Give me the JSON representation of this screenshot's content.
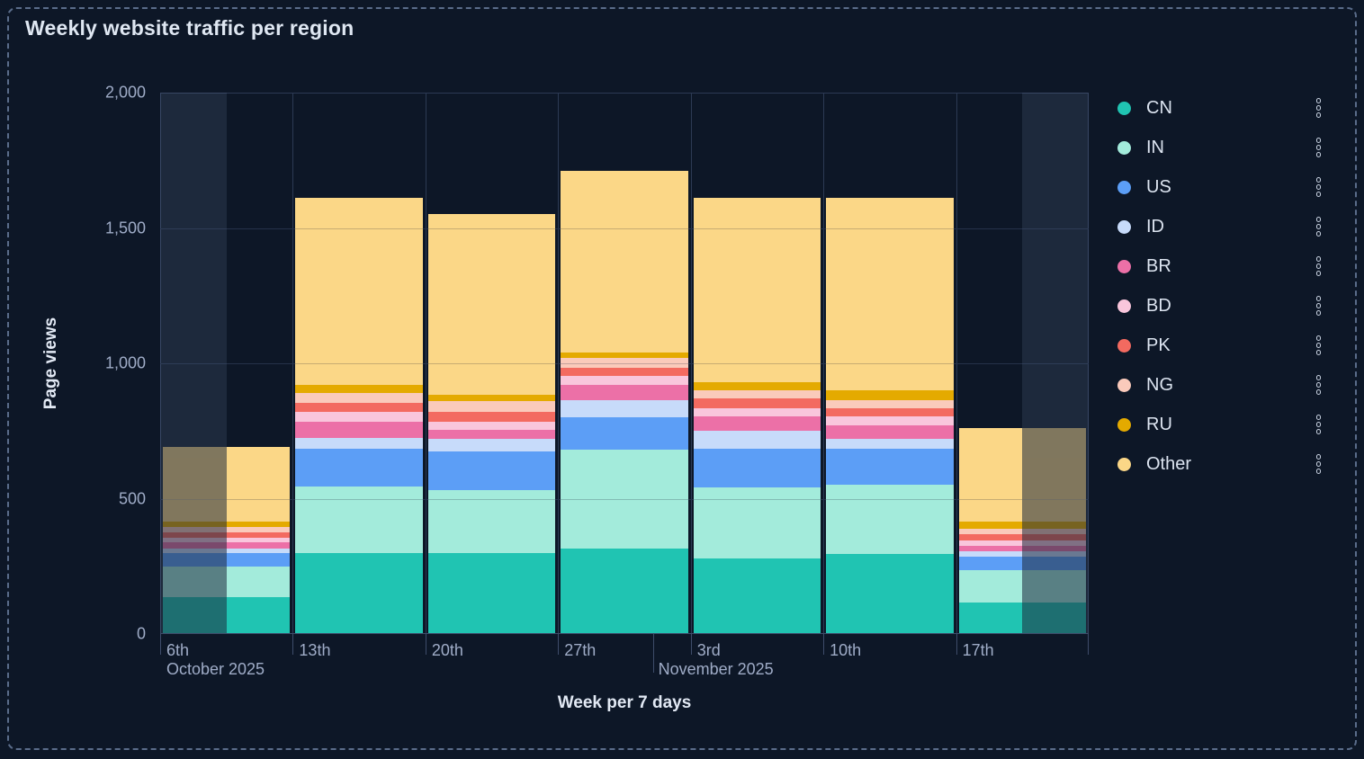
{
  "title": "Weekly website traffic per region",
  "colors": {
    "background": "#0D1727",
    "frame_border": "#5A6C8A",
    "grid_line": "#2C3A54",
    "axis_line": "#3E4C6A",
    "tick_label": "#9FACC7",
    "axis_title": "#E2E9F4",
    "title_text": "#DFE7F2",
    "legend_label": "#DCE4F0",
    "menu_icon": "#C7D1E0",
    "partial_week_overlay": "rgba(141,162,207,0.13)"
  },
  "y_axis": {
    "title": "Page views",
    "ticks": [
      {
        "value": 0,
        "label": "0"
      },
      {
        "value": 500,
        "label": "500"
      },
      {
        "value": 1000,
        "label": "1,000"
      },
      {
        "value": 1500,
        "label": "1,500"
      },
      {
        "value": 2000,
        "label": "2,000"
      }
    ]
  },
  "x_axis": {
    "title": "Week per 7 days",
    "week_labels": [
      "6th",
      "13th",
      "20th",
      "27th",
      "3rd",
      "10th",
      "17th"
    ],
    "month_labels": [
      {
        "text": "October 2025",
        "week_index": 0,
        "day_offset_fraction": 0
      },
      {
        "text": "November 2025",
        "week_index": 3,
        "day_offset_fraction": 0.7143
      }
    ],
    "month_tick": {
      "week_index": 3,
      "day_offset_fraction": 0.7143
    }
  },
  "legend": {
    "position": "right",
    "menu_icon": "kebab-three-circles"
  },
  "chart_data": {
    "type": "bar",
    "stacked": true,
    "title": "Weekly website traffic per region",
    "xlabel": "Week per 7 days",
    "ylabel": "Page views",
    "ylim": [
      0,
      2000
    ],
    "y_tick_values": [
      0,
      500,
      1000,
      1500,
      2000
    ],
    "grid": true,
    "legend_position": "right",
    "categories": [
      "6th (October 2025)",
      "13th",
      "20th",
      "27th",
      "3rd (November 2025)",
      "10th",
      "17th"
    ],
    "series": [
      {
        "name": "CN",
        "color": "#20C4B2",
        "values": [
          135,
          300,
          300,
          315,
          280,
          295,
          115
        ]
      },
      {
        "name": "IN",
        "color": "#A3EBDB",
        "values": [
          115,
          245,
          230,
          365,
          260,
          255,
          120
        ]
      },
      {
        "name": "US",
        "color": "#5C9EF6",
        "values": [
          50,
          140,
          145,
          120,
          145,
          135,
          50
        ]
      },
      {
        "name": "ID",
        "color": "#C7DBFA",
        "values": [
          15,
          40,
          45,
          65,
          65,
          35,
          20
        ]
      },
      {
        "name": "BR",
        "color": "#EC70A7",
        "values": [
          25,
          60,
          35,
          55,
          55,
          50,
          20
        ]
      },
      {
        "name": "BD",
        "color": "#F9C6DC",
        "values": [
          15,
          35,
          30,
          35,
          30,
          35,
          20
        ]
      },
      {
        "name": "PK",
        "color": "#F36A60",
        "values": [
          20,
          35,
          35,
          30,
          35,
          30,
          25
        ]
      },
      {
        "name": "NG",
        "color": "#FACABB",
        "values": [
          20,
          35,
          40,
          35,
          30,
          30,
          20
        ]
      },
      {
        "name": "RU",
        "color": "#E4AA00",
        "values": [
          20,
          30,
          25,
          20,
          30,
          35,
          25
        ]
      },
      {
        "name": "Other",
        "color": "#FBD787",
        "values": [
          275,
          690,
          665,
          670,
          680,
          710,
          345
        ]
      }
    ],
    "totals": [
      690,
      1610,
      1550,
      1710,
      1610,
      1610,
      760
    ],
    "partial_weeks": [
      {
        "column": 0,
        "dimmed_side": "left"
      },
      {
        "column": 6,
        "dimmed_side": "right"
      }
    ]
  }
}
